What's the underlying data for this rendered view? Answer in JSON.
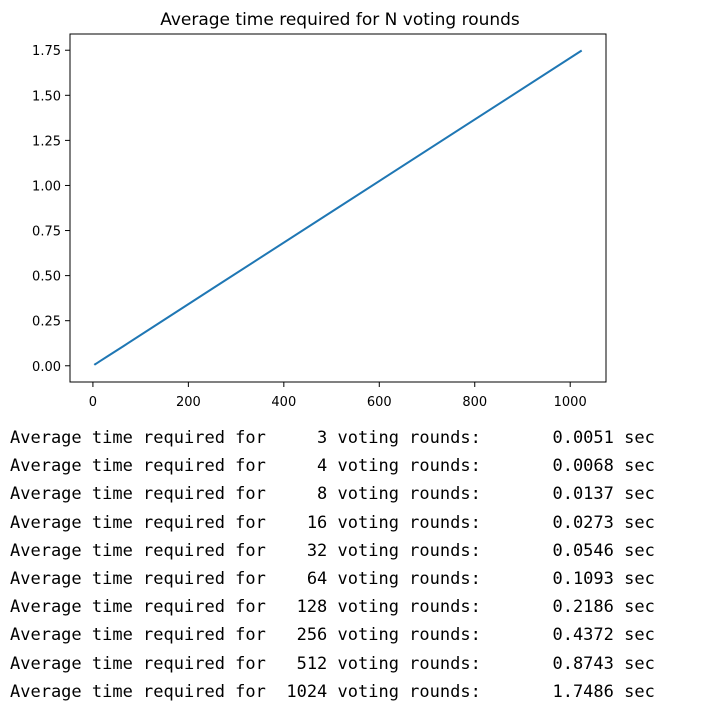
{
  "chart_data": {
    "type": "line",
    "title": "Average time required for N voting rounds",
    "xlabel": "",
    "ylabel": "",
    "x": [
      3,
      4,
      8,
      16,
      32,
      64,
      128,
      256,
      512,
      1024
    ],
    "series": [
      {
        "values": [
          0.0051,
          0.0068,
          0.0137,
          0.0273,
          0.0546,
          0.1093,
          0.2186,
          0.4372,
          0.8743,
          1.7486
        ]
      }
    ],
    "xlim": [
      -48,
      1075
    ],
    "ylim": [
      -0.09,
      1.84
    ],
    "xticks": [
      0,
      200,
      400,
      600,
      800,
      1000
    ],
    "yticks": [
      0.0,
      0.25,
      0.5,
      0.75,
      1.0,
      1.25,
      1.5,
      1.75
    ],
    "xtick_labels": [
      "0",
      "200",
      "400",
      "600",
      "800",
      "1000"
    ],
    "ytick_labels": [
      "0.00",
      "0.25",
      "0.50",
      "0.75",
      "1.00",
      "1.25",
      "1.50",
      "1.75"
    ],
    "grid": false,
    "line_color": "#1f77b4"
  },
  "output": {
    "prefix": "Average time required for",
    "middle": "voting rounds:",
    "unit": "sec",
    "rows": [
      {
        "n": "3",
        "time": "0.0051"
      },
      {
        "n": "4",
        "time": "0.0068"
      },
      {
        "n": "8",
        "time": "0.0137"
      },
      {
        "n": "16",
        "time": "0.0273"
      },
      {
        "n": "32",
        "time": "0.0546"
      },
      {
        "n": "64",
        "time": "0.1093"
      },
      {
        "n": "128",
        "time": "0.2186"
      },
      {
        "n": "256",
        "time": "0.4372"
      },
      {
        "n": "512",
        "time": "0.8743"
      },
      {
        "n": "1024",
        "time": "1.7486"
      }
    ]
  }
}
